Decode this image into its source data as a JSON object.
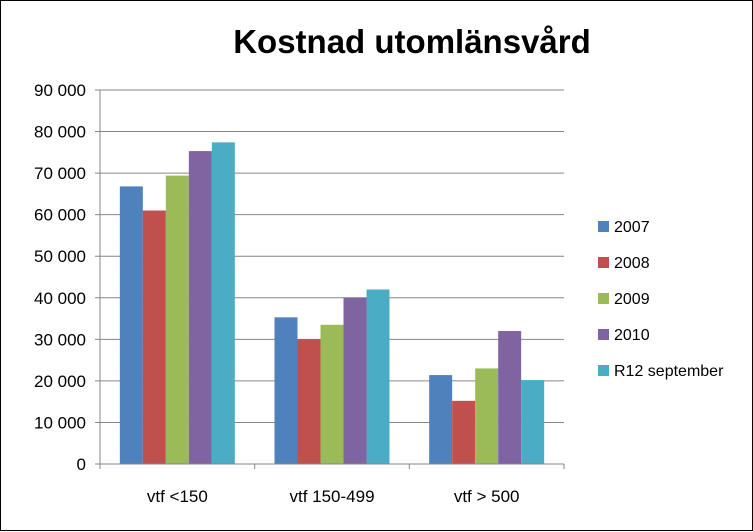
{
  "chart_data": {
    "type": "bar",
    "title": "Kostnad utomlänsvård",
    "xlabel": "",
    "ylabel": "",
    "ylim": [
      0,
      90000
    ],
    "y_ticks": [
      "0",
      "10 000",
      "20 000",
      "30 000",
      "40 000",
      "50 000",
      "60 000",
      "70 000",
      "80 000",
      "90 000"
    ],
    "grid": true,
    "legend_position": "right",
    "categories": [
      "vtf <150",
      "vtf 150-499",
      "vtf > 500"
    ],
    "series": [
      {
        "name": "2007",
        "color": "#4F81BD",
        "values": [
          66800,
          35300,
          21400
        ]
      },
      {
        "name": "2008",
        "color": "#C0504D",
        "values": [
          61000,
          30000,
          15200
        ]
      },
      {
        "name": "2009",
        "color": "#9BBB59",
        "values": [
          69400,
          33500,
          23000
        ]
      },
      {
        "name": "2010",
        "color": "#8064A2",
        "values": [
          75300,
          40000,
          32000
        ]
      },
      {
        "name": "R12 september",
        "color": "#4BACC6",
        "values": [
          77400,
          42000,
          20200
        ]
      }
    ]
  }
}
